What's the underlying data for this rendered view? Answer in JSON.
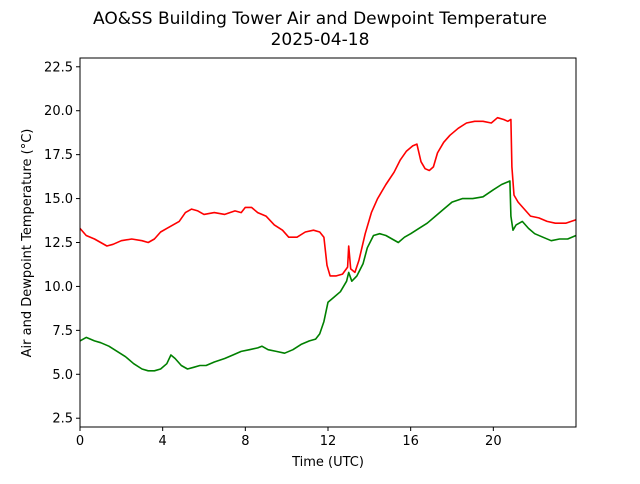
{
  "chart_data": {
    "type": "line",
    "title": "AO&SS Building Tower Air and Dewpoint Temperature",
    "subtitle": "2025-04-18",
    "xlabel": "Time (UTC)",
    "ylabel": "Air and Dewpoint Temperature (°C)",
    "xlim": [
      0,
      24
    ],
    "ylim": [
      2.0,
      23.0
    ],
    "x_ticks": [
      0,
      4,
      8,
      12,
      16,
      20
    ],
    "x_tick_labels": [
      "0",
      "4",
      "8",
      "12",
      "16",
      "20"
    ],
    "y_ticks": [
      2.5,
      5.0,
      7.5,
      10.0,
      12.5,
      15.0,
      17.5,
      20.0,
      22.5
    ],
    "y_tick_labels": [
      "2.5",
      "5.0",
      "7.5",
      "10.0",
      "12.5",
      "15.0",
      "17.5",
      "20.0",
      "22.5"
    ],
    "grid": false,
    "legend": "none",
    "series": [
      {
        "color": "#ff0000",
        "x": [
          0,
          0.3,
          0.7,
          1.0,
          1.3,
          1.6,
          2.0,
          2.5,
          3.0,
          3.3,
          3.6,
          3.9,
          4.2,
          4.5,
          4.8,
          5.1,
          5.4,
          5.7,
          6.0,
          6.5,
          7.0,
          7.5,
          7.8,
          8.0,
          8.3,
          8.6,
          9.0,
          9.4,
          9.8,
          10.1,
          10.5,
          10.9,
          11.3,
          11.6,
          11.8,
          11.95,
          12.1,
          12.4,
          12.7,
          12.95,
          13.0,
          13.1,
          13.3,
          13.5,
          13.8,
          14.1,
          14.4,
          14.8,
          15.2,
          15.5,
          15.8,
          16.1,
          16.3,
          16.5,
          16.7,
          16.9,
          17.1,
          17.3,
          17.6,
          17.9,
          18.3,
          18.7,
          19.1,
          19.5,
          19.9,
          20.2,
          20.5,
          20.7,
          20.85,
          20.9,
          21.0,
          21.2,
          21.5,
          21.8,
          22.2,
          22.6,
          23.0,
          23.5,
          24.0
        ],
        "y": [
          13.3,
          12.9,
          12.7,
          12.5,
          12.3,
          12.4,
          12.6,
          12.7,
          12.6,
          12.5,
          12.7,
          13.1,
          13.3,
          13.5,
          13.7,
          14.2,
          14.4,
          14.3,
          14.1,
          14.2,
          14.1,
          14.3,
          14.2,
          14.5,
          14.5,
          14.2,
          14.0,
          13.5,
          13.2,
          12.8,
          12.8,
          13.1,
          13.2,
          13.1,
          12.8,
          11.2,
          10.6,
          10.6,
          10.7,
          11.1,
          12.3,
          11.0,
          10.8,
          11.5,
          13.0,
          14.2,
          15.0,
          15.8,
          16.5,
          17.2,
          17.7,
          18.0,
          18.1,
          17.1,
          16.7,
          16.6,
          16.8,
          17.6,
          18.2,
          18.6,
          19.0,
          19.3,
          19.4,
          19.4,
          19.3,
          19.6,
          19.5,
          19.4,
          19.5,
          16.8,
          15.2,
          14.8,
          14.4,
          14.0,
          13.9,
          13.7,
          13.6,
          13.6,
          13.8
        ]
      },
      {
        "color": "#008000",
        "x": [
          0,
          0.3,
          0.7,
          1.0,
          1.4,
          1.8,
          2.2,
          2.6,
          3.0,
          3.3,
          3.6,
          3.9,
          4.2,
          4.4,
          4.6,
          4.9,
          5.2,
          5.5,
          5.8,
          6.1,
          6.5,
          7.0,
          7.4,
          7.8,
          8.2,
          8.6,
          8.8,
          9.1,
          9.5,
          9.9,
          10.3,
          10.7,
          11.1,
          11.4,
          11.6,
          11.8,
          12.0,
          12.3,
          12.6,
          12.9,
          13.0,
          13.15,
          13.4,
          13.7,
          13.9,
          14.2,
          14.5,
          14.8,
          15.1,
          15.4,
          15.7,
          16.0,
          16.4,
          16.8,
          17.2,
          17.6,
          18.0,
          18.5,
          19.0,
          19.5,
          20.0,
          20.4,
          20.8,
          20.85,
          20.95,
          21.1,
          21.4,
          21.7,
          22.0,
          22.4,
          22.8,
          23.2,
          23.6,
          24.0
        ],
        "y": [
          6.9,
          7.1,
          6.9,
          6.8,
          6.6,
          6.3,
          6.0,
          5.6,
          5.3,
          5.2,
          5.2,
          5.3,
          5.6,
          6.1,
          5.9,
          5.5,
          5.3,
          5.4,
          5.5,
          5.5,
          5.7,
          5.9,
          6.1,
          6.3,
          6.4,
          6.5,
          6.6,
          6.4,
          6.3,
          6.2,
          6.4,
          6.7,
          6.9,
          7.0,
          7.3,
          8.0,
          9.1,
          9.4,
          9.7,
          10.3,
          10.8,
          10.3,
          10.6,
          11.3,
          12.2,
          12.9,
          13.0,
          12.9,
          12.7,
          12.5,
          12.8,
          13.0,
          13.3,
          13.6,
          14.0,
          14.4,
          14.8,
          15.0,
          15.0,
          15.1,
          15.5,
          15.8,
          16.0,
          14.0,
          13.2,
          13.5,
          13.7,
          13.3,
          13.0,
          12.8,
          12.6,
          12.7,
          12.7,
          12.9
        ]
      }
    ]
  }
}
